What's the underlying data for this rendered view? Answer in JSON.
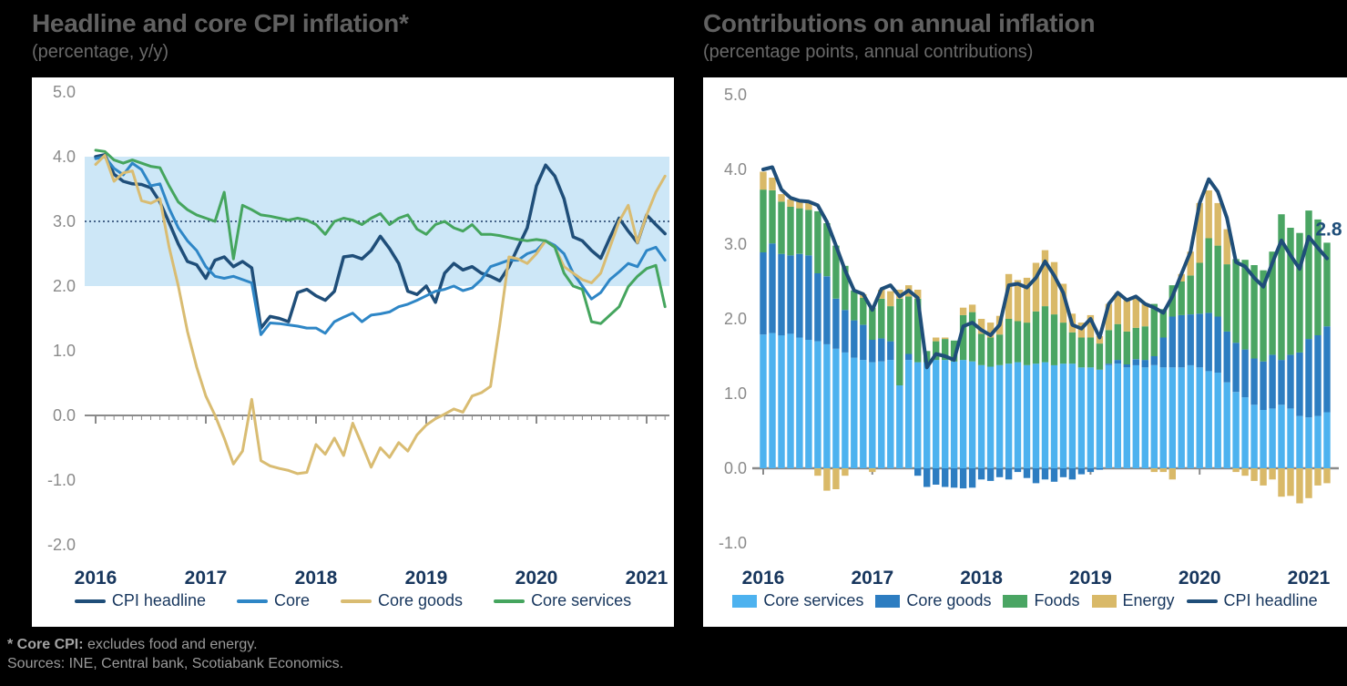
{
  "footer": {
    "note_bold": "* Core CPI:",
    "note_rest": " excludes food and energy.",
    "sources": "Sources: INE, Central bank, Scotiabank Economics."
  },
  "chart_data": [
    {
      "type": "line",
      "title": "Headline and core CPI inflation*",
      "subtitle": "(percentage, y/y)",
      "x_note": "monthly, Jan 2016 - Mar 2021",
      "x_ticks": [
        "2016",
        "2017",
        "2018",
        "2019",
        "2020",
        "2021"
      ],
      "y_ticks": [
        "5.0",
        "4.0",
        "3.0",
        "2.0",
        "1.0",
        "0.0",
        "-1.0",
        "-2.0"
      ],
      "ylim": [
        -2.0,
        5.0
      ],
      "grid": false,
      "legend_position": "bottom",
      "band": {
        "from": 2.0,
        "to": 4.0,
        "color": "#cde7f7"
      },
      "reference_line": {
        "value": 3.0,
        "color": "#1b3a66"
      },
      "series": [
        {
          "name": "CPI headline",
          "type": "line",
          "color": "#1f4e79",
          "values": [
            4.0,
            4.03,
            3.73,
            3.62,
            3.58,
            3.57,
            3.52,
            3.3,
            2.98,
            2.65,
            2.38,
            2.33,
            2.12,
            2.4,
            2.45,
            2.3,
            2.38,
            2.28,
            1.35,
            1.53,
            1.5,
            1.45,
            1.9,
            1.95,
            1.85,
            1.78,
            1.92,
            2.45,
            2.47,
            2.42,
            2.55,
            2.77,
            2.58,
            2.35,
            1.92,
            1.87,
            2.0,
            1.75,
            2.2,
            2.35,
            2.25,
            2.3,
            2.2,
            2.15,
            2.08,
            2.3,
            2.6,
            2.9,
            3.55,
            3.87,
            3.7,
            3.35,
            2.76,
            2.7,
            2.55,
            2.43,
            2.75,
            3.05,
            2.85,
            2.67,
            3.1,
            2.95,
            2.81
          ]
        },
        {
          "name": "Core",
          "type": "line",
          "color": "#2e86c6",
          "values": [
            3.97,
            4.0,
            3.82,
            3.72,
            3.9,
            3.8,
            3.55,
            3.58,
            3.2,
            2.9,
            2.7,
            2.55,
            2.3,
            2.15,
            2.12,
            2.15,
            2.1,
            2.05,
            1.25,
            1.43,
            1.42,
            1.4,
            1.38,
            1.35,
            1.35,
            1.27,
            1.45,
            1.52,
            1.58,
            1.45,
            1.55,
            1.57,
            1.6,
            1.68,
            1.72,
            1.78,
            1.85,
            1.92,
            1.95,
            2.0,
            1.93,
            1.97,
            2.1,
            2.3,
            2.35,
            2.4,
            2.4,
            2.5,
            2.55,
            2.7,
            2.63,
            2.5,
            2.2,
            2.0,
            1.8,
            1.9,
            2.1,
            2.22,
            2.35,
            2.3,
            2.55,
            2.6,
            2.4
          ]
        },
        {
          "name": "Core goods",
          "type": "line",
          "color": "#d9bc72",
          "values": [
            3.88,
            4.02,
            3.62,
            3.75,
            3.78,
            3.32,
            3.28,
            3.35,
            2.6,
            2.0,
            1.3,
            0.75,
            0.3,
            0.0,
            -0.35,
            -0.75,
            -0.55,
            0.25,
            -0.7,
            -0.78,
            -0.82,
            -0.85,
            -0.9,
            -0.88,
            -0.45,
            -0.6,
            -0.35,
            -0.62,
            -0.12,
            -0.45,
            -0.8,
            -0.5,
            -0.65,
            -0.42,
            -0.55,
            -0.3,
            -0.15,
            -0.05,
            0.02,
            0.1,
            0.05,
            0.3,
            0.35,
            0.45,
            1.4,
            2.45,
            2.42,
            2.35,
            2.5,
            2.7,
            2.6,
            2.3,
            2.2,
            2.1,
            2.05,
            2.2,
            2.6,
            3.0,
            3.25,
            2.67,
            3.1,
            3.45,
            3.7
          ]
        },
        {
          "name": "Core services",
          "type": "line",
          "color": "#45a55e",
          "values": [
            4.1,
            4.08,
            3.95,
            3.9,
            3.95,
            3.9,
            3.85,
            3.83,
            3.55,
            3.3,
            3.18,
            3.1,
            3.05,
            3.0,
            3.45,
            2.42,
            3.25,
            3.18,
            3.1,
            3.08,
            3.05,
            3.02,
            3.05,
            3.02,
            2.95,
            2.8,
            3.0,
            3.05,
            3.02,
            2.95,
            3.05,
            3.12,
            2.95,
            3.05,
            3.1,
            2.88,
            2.8,
            2.95,
            3.0,
            2.9,
            2.85,
            2.95,
            2.8,
            2.8,
            2.78,
            2.75,
            2.72,
            2.7,
            2.72,
            2.7,
            2.6,
            2.2,
            2.0,
            1.95,
            1.45,
            1.42,
            1.55,
            1.68,
            1.99,
            2.15,
            2.27,
            2.32,
            1.68
          ]
        }
      ]
    },
    {
      "type": "bar",
      "title": "Contributions on annual inflation",
      "subtitle": "(percentage points, annual contributions)",
      "x_note": "monthly stacked contributions, Jan 2016 - Mar 2021",
      "x_ticks": [
        "2016",
        "2017",
        "2018",
        "2019",
        "2020",
        "2021"
      ],
      "y_ticks": [
        "5.0",
        "4.0",
        "3.0",
        "2.0",
        "1.0",
        "0.0",
        "-1.0"
      ],
      "ylim": [
        -1.0,
        5.0
      ],
      "grid": false,
      "legend_position": "bottom",
      "end_label": "2.8",
      "series": [
        {
          "name": "Core services",
          "type": "bar",
          "color": "#4db2ef",
          "values": [
            1.79,
            1.81,
            1.78,
            1.8,
            1.75,
            1.72,
            1.7,
            1.66,
            1.6,
            1.55,
            1.48,
            1.45,
            1.42,
            1.43,
            1.45,
            1.11,
            1.45,
            1.42,
            1.42,
            1.45,
            1.45,
            1.43,
            1.45,
            1.43,
            1.38,
            1.36,
            1.38,
            1.4,
            1.42,
            1.38,
            1.4,
            1.42,
            1.38,
            1.4,
            1.4,
            1.35,
            1.35,
            1.32,
            1.38,
            1.4,
            1.35,
            1.38,
            1.35,
            1.38,
            1.35,
            1.35,
            1.35,
            1.38,
            1.35,
            1.3,
            1.28,
            1.15,
            1.02,
            0.95,
            0.85,
            0.78,
            0.8,
            0.85,
            0.8,
            0.7,
            0.68,
            0.7,
            0.75
          ]
        },
        {
          "name": "Core goods",
          "type": "bar",
          "color": "#2d7dc1",
          "values": [
            1.1,
            1.2,
            1.09,
            1.05,
            1.12,
            1.13,
            0.91,
            0.91,
            0.67,
            0.57,
            0.5,
            0.47,
            0.3,
            0.31,
            0.25,
            0.0,
            0.08,
            -0.1,
            -0.25,
            -0.22,
            -0.25,
            -0.26,
            -0.27,
            -0.26,
            -0.15,
            -0.17,
            -0.12,
            -0.15,
            -0.05,
            -0.13,
            -0.2,
            -0.15,
            -0.18,
            -0.12,
            -0.15,
            -0.08,
            -0.05,
            -0.02,
            0.02,
            0.05,
            0.04,
            0.08,
            0.1,
            0.12,
            0.4,
            0.68,
            0.7,
            0.68,
            0.72,
            0.78,
            0.75,
            0.68,
            0.66,
            0.64,
            0.62,
            0.65,
            0.72,
            0.6,
            0.72,
            0.85,
            1.05,
            1.08,
            1.15
          ]
        },
        {
          "name": "Foods",
          "type": "bar",
          "color": "#4aa563",
          "values": [
            0.84,
            0.71,
            0.7,
            0.65,
            0.61,
            0.61,
            0.83,
            0.71,
            0.71,
            0.59,
            0.4,
            0.36,
            0.43,
            0.53,
            0.47,
            1.16,
            0.77,
            0.85,
            0.15,
            0.25,
            0.28,
            0.28,
            0.6,
            0.66,
            0.42,
            0.39,
            0.41,
            0.6,
            0.55,
            0.57,
            0.7,
            0.75,
            0.68,
            0.55,
            0.42,
            0.4,
            0.4,
            0.35,
            0.45,
            0.48,
            0.44,
            0.42,
            0.45,
            0.7,
            0.38,
            0.42,
            0.45,
            0.52,
            0.68,
            1.0,
            0.95,
            0.9,
            1.12,
            1.2,
            1.25,
            1.22,
            1.38,
            1.95,
            1.7,
            1.6,
            1.72,
            1.55,
            1.12
          ]
        },
        {
          "name": "Energy",
          "type": "bar",
          "color": "#d9b968",
          "values": [
            0.24,
            0.17,
            0.1,
            0.1,
            0.09,
            0.09,
            -0.1,
            -0.3,
            -0.28,
            -0.1,
            0.0,
            0.05,
            -0.05,
            0.12,
            0.2,
            0.12,
            0.15,
            0.12,
            0.0,
            0.05,
            0.02,
            0.0,
            0.1,
            0.1,
            0.2,
            0.2,
            0.25,
            0.6,
            0.55,
            0.6,
            0.65,
            0.75,
            0.7,
            0.52,
            0.25,
            0.2,
            0.3,
            0.1,
            0.35,
            0.42,
            0.42,
            0.42,
            0.3,
            -0.05,
            -0.05,
            -0.15,
            0.1,
            0.32,
            0.8,
            0.64,
            0.57,
            0.47,
            -0.05,
            -0.1,
            -0.17,
            -0.23,
            -0.15,
            -0.38,
            -0.37,
            -0.47,
            -0.4,
            -0.23,
            -0.2
          ]
        },
        {
          "name": "CPI headline",
          "type": "line",
          "color": "#1f4e79",
          "values": [
            4.0,
            4.03,
            3.73,
            3.62,
            3.58,
            3.57,
            3.52,
            3.3,
            2.98,
            2.65,
            2.38,
            2.33,
            2.12,
            2.4,
            2.45,
            2.3,
            2.38,
            2.28,
            1.35,
            1.53,
            1.5,
            1.45,
            1.9,
            1.95,
            1.85,
            1.78,
            1.92,
            2.45,
            2.47,
            2.42,
            2.55,
            2.77,
            2.58,
            2.35,
            1.92,
            1.87,
            2.0,
            1.75,
            2.2,
            2.35,
            2.25,
            2.3,
            2.2,
            2.15,
            2.08,
            2.3,
            2.6,
            2.9,
            3.55,
            3.87,
            3.7,
            3.35,
            2.76,
            2.7,
            2.55,
            2.43,
            2.75,
            3.05,
            2.85,
            2.67,
            3.1,
            2.95,
            2.81
          ]
        }
      ]
    }
  ]
}
